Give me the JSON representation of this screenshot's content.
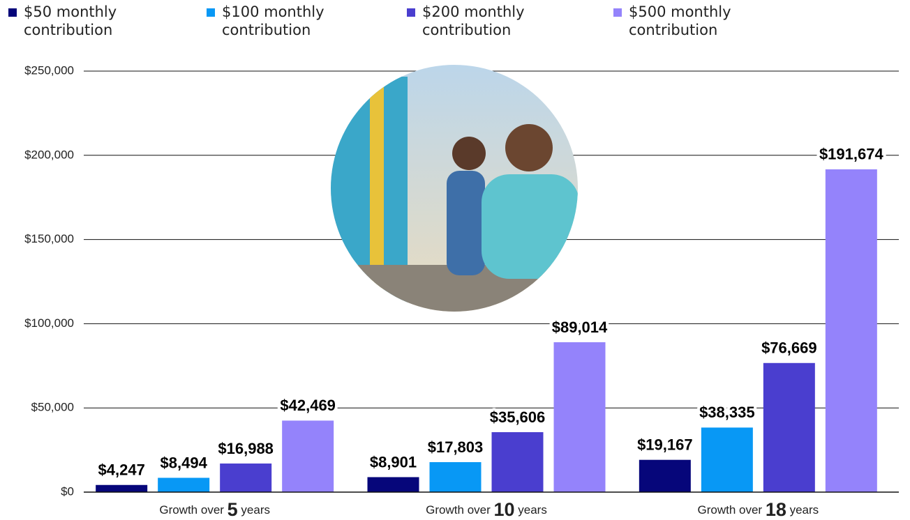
{
  "chart_data": {
    "type": "bar",
    "categories": [
      "Growth over 5 years",
      "Growth over 10 years",
      "Growth over 18 years"
    ],
    "series": [
      {
        "name": "$50 monthly contribution",
        "color": "#06067a",
        "values": [
          4247,
          8901,
          19167
        ],
        "value_labels": [
          "$4,247",
          "$8,901",
          "$19,167"
        ]
      },
      {
        "name": "$100 monthly contribution",
        "color": "#0898f5",
        "values": [
          8494,
          17803,
          38335
        ],
        "value_labels": [
          "$8,494",
          "$17,803",
          "$38,335"
        ]
      },
      {
        "name": "$200 monthly contribution",
        "color": "#4a3ecf",
        "values": [
          16988,
          35606,
          76669
        ],
        "value_labels": [
          "$16,988",
          "$35,606",
          "$76,669"
        ]
      },
      {
        "name": "$500 monthly contribution",
        "color": "#9483fb",
        "values": [
          42469,
          89014,
          191674
        ],
        "value_labels": [
          "$42,469",
          "$89,014",
          "$191,674"
        ]
      }
    ],
    "ylim": [
      0,
      250000
    ],
    "yticks": [
      {
        "value": 0,
        "label": "$0"
      },
      {
        "value": 50000,
        "label": "$50,000"
      },
      {
        "value": 100000,
        "label": "$100,000"
      },
      {
        "value": 150000,
        "label": "$150,000"
      },
      {
        "value": 200000,
        "label": "$200,000"
      },
      {
        "value": 250000,
        "label": "$250,000"
      }
    ],
    "grid": true
  }
}
